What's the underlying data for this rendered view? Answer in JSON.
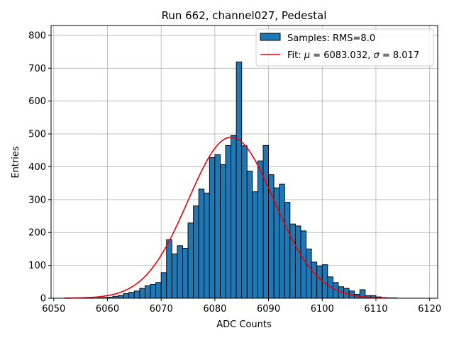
{
  "chart_data": {
    "type": "bar",
    "title": "Run 662, channel027, Pedestal",
    "xlabel": "ADC Counts",
    "ylabel": "Entries",
    "xlim": [
      6049.5,
      6121.5
    ],
    "ylim": [
      0,
      830
    ],
    "grid": true,
    "legend_position": "top-right",
    "x_ticks": [
      6050,
      6060,
      6070,
      6080,
      6090,
      6100,
      6110,
      6120
    ],
    "y_ticks": [
      0,
      100,
      200,
      300,
      400,
      500,
      600,
      700,
      800
    ],
    "bin_width": 1,
    "bin_start": 6052,
    "bar_counts": [
      0,
      0,
      0,
      0,
      0,
      0,
      1,
      2,
      3,
      6,
      9,
      14,
      18,
      22,
      30,
      38,
      42,
      48,
      78,
      178,
      135,
      160,
      152,
      229,
      281,
      332,
      320,
      428,
      437,
      407,
      465,
      495,
      719,
      464,
      387,
      324,
      418,
      465,
      376,
      336,
      347,
      292,
      226,
      220,
      205,
      150,
      110,
      98,
      102,
      65,
      48,
      35,
      30,
      22,
      12,
      26,
      8,
      8,
      4,
      2,
      1,
      1
    ],
    "bar_color": "#1f77b4",
    "fit_color": "#e8000b",
    "fit_mu": 6083.032,
    "fit_sigma": 8.017,
    "fit_amplitude": 490,
    "fit_range": [
      6052,
      6112
    ],
    "legend": {
      "samples_label": "Samples: RMS=8.0",
      "fit_label_prefix": "Fit: ",
      "fit_mu_symbol": "μ",
      "fit_mu_text": " = 6083.032, ",
      "fit_sigma_symbol": "σ",
      "fit_sigma_text": " = 8.017"
    }
  }
}
